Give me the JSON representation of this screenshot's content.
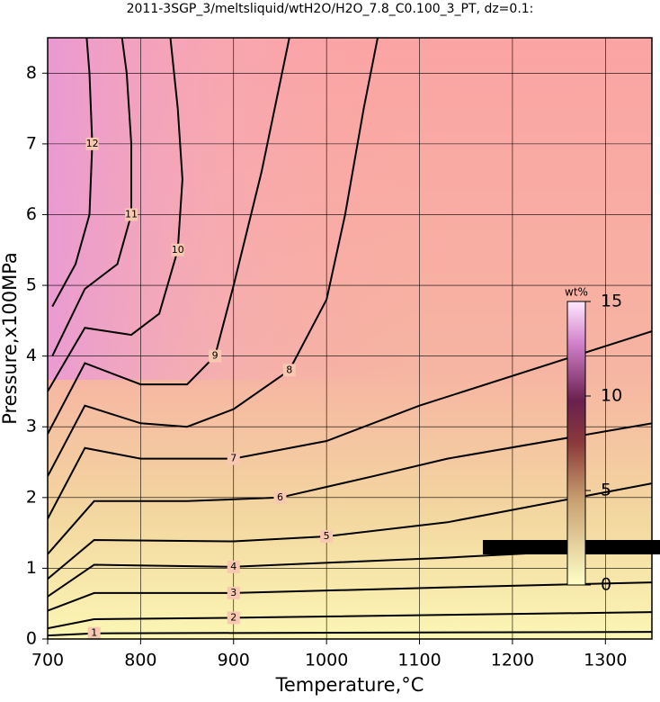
{
  "chart_data": {
    "type": "contour",
    "title": "2011-3SGP_3/meltsliquid/wtH2O/H2O_7.8_C0.100_3_PT, dz=0.1:",
    "x_label": "Temperature,°C",
    "y_label": "Pressure,x100MPa",
    "xlim": [
      700,
      1350
    ],
    "ylim": [
      0,
      8.5
    ],
    "xticks": [
      700,
      800,
      900,
      1000,
      1100,
      1200,
      1300
    ],
    "yticks": [
      0,
      1,
      2,
      3,
      4,
      5,
      6,
      7,
      8
    ],
    "grid": true,
    "colorbar": {
      "label": "wt%",
      "lim": [
        0,
        15
      ],
      "ticks": [
        0,
        5,
        10,
        15
      ]
    },
    "contours": [
      {
        "level": 1,
        "x": [
          700,
          750,
          1350
        ],
        "y": [
          0.05,
          0.08,
          0.1
        ]
      },
      {
        "level": 2,
        "x": [
          700,
          750,
          900,
          1350
        ],
        "y": [
          0.15,
          0.28,
          0.3,
          0.38
        ]
      },
      {
        "level": 3,
        "x": [
          700,
          750,
          900,
          1130,
          1350
        ],
        "y": [
          0.4,
          0.65,
          0.65,
          0.73,
          0.8
        ]
      },
      {
        "level": 4,
        "x": [
          700,
          750,
          900,
          1130,
          1350
        ],
        "y": [
          0.6,
          1.05,
          1.02,
          1.15,
          1.3
        ]
      },
      {
        "level": 5,
        "x": [
          700,
          750,
          900,
          1000,
          1130,
          1350
        ],
        "y": [
          0.85,
          1.4,
          1.38,
          1.45,
          1.65,
          2.2
        ]
      },
      {
        "level": 6,
        "x": [
          700,
          750,
          850,
          950,
          1050,
          1130,
          1350
        ],
        "y": [
          1.2,
          1.95,
          1.95,
          2.0,
          2.3,
          2.55,
          3.05
        ]
      },
      {
        "level": 7,
        "x": [
          700,
          740,
          800,
          900,
          1000,
          1100,
          1350
        ],
        "y": [
          1.7,
          2.7,
          2.55,
          2.55,
          2.8,
          3.3,
          4.35
        ]
      },
      {
        "level": 8,
        "x": [
          700,
          740,
          800,
          850,
          900,
          960,
          1000,
          1020,
          1040,
          1055
        ],
        "y": [
          2.3,
          3.3,
          3.05,
          3.0,
          3.25,
          3.8,
          4.8,
          6,
          7.5,
          8.5
        ]
      },
      {
        "level": 9,
        "x": [
          700,
          740,
          800,
          850,
          880,
          900,
          930,
          960
        ],
        "y": [
          2.9,
          3.9,
          3.6,
          3.6,
          4.0,
          5.0,
          6.6,
          8.5
        ]
      },
      {
        "level": 10,
        "x": [
          700,
          740,
          790,
          820,
          840,
          845,
          840,
          832
        ],
        "y": [
          3.5,
          4.4,
          4.3,
          4.6,
          5.5,
          6.5,
          7.5,
          8.5
        ]
      },
      {
        "level": 11,
        "x": [
          705,
          740,
          775,
          790,
          790,
          785,
          780
        ],
        "y": [
          4.0,
          4.95,
          5.3,
          6,
          7,
          8,
          8.5
        ]
      },
      {
        "level": 12,
        "x": [
          705,
          730,
          745,
          748,
          745,
          742
        ],
        "y": [
          4.7,
          5.3,
          6,
          7,
          8,
          8.5
        ]
      }
    ]
  }
}
